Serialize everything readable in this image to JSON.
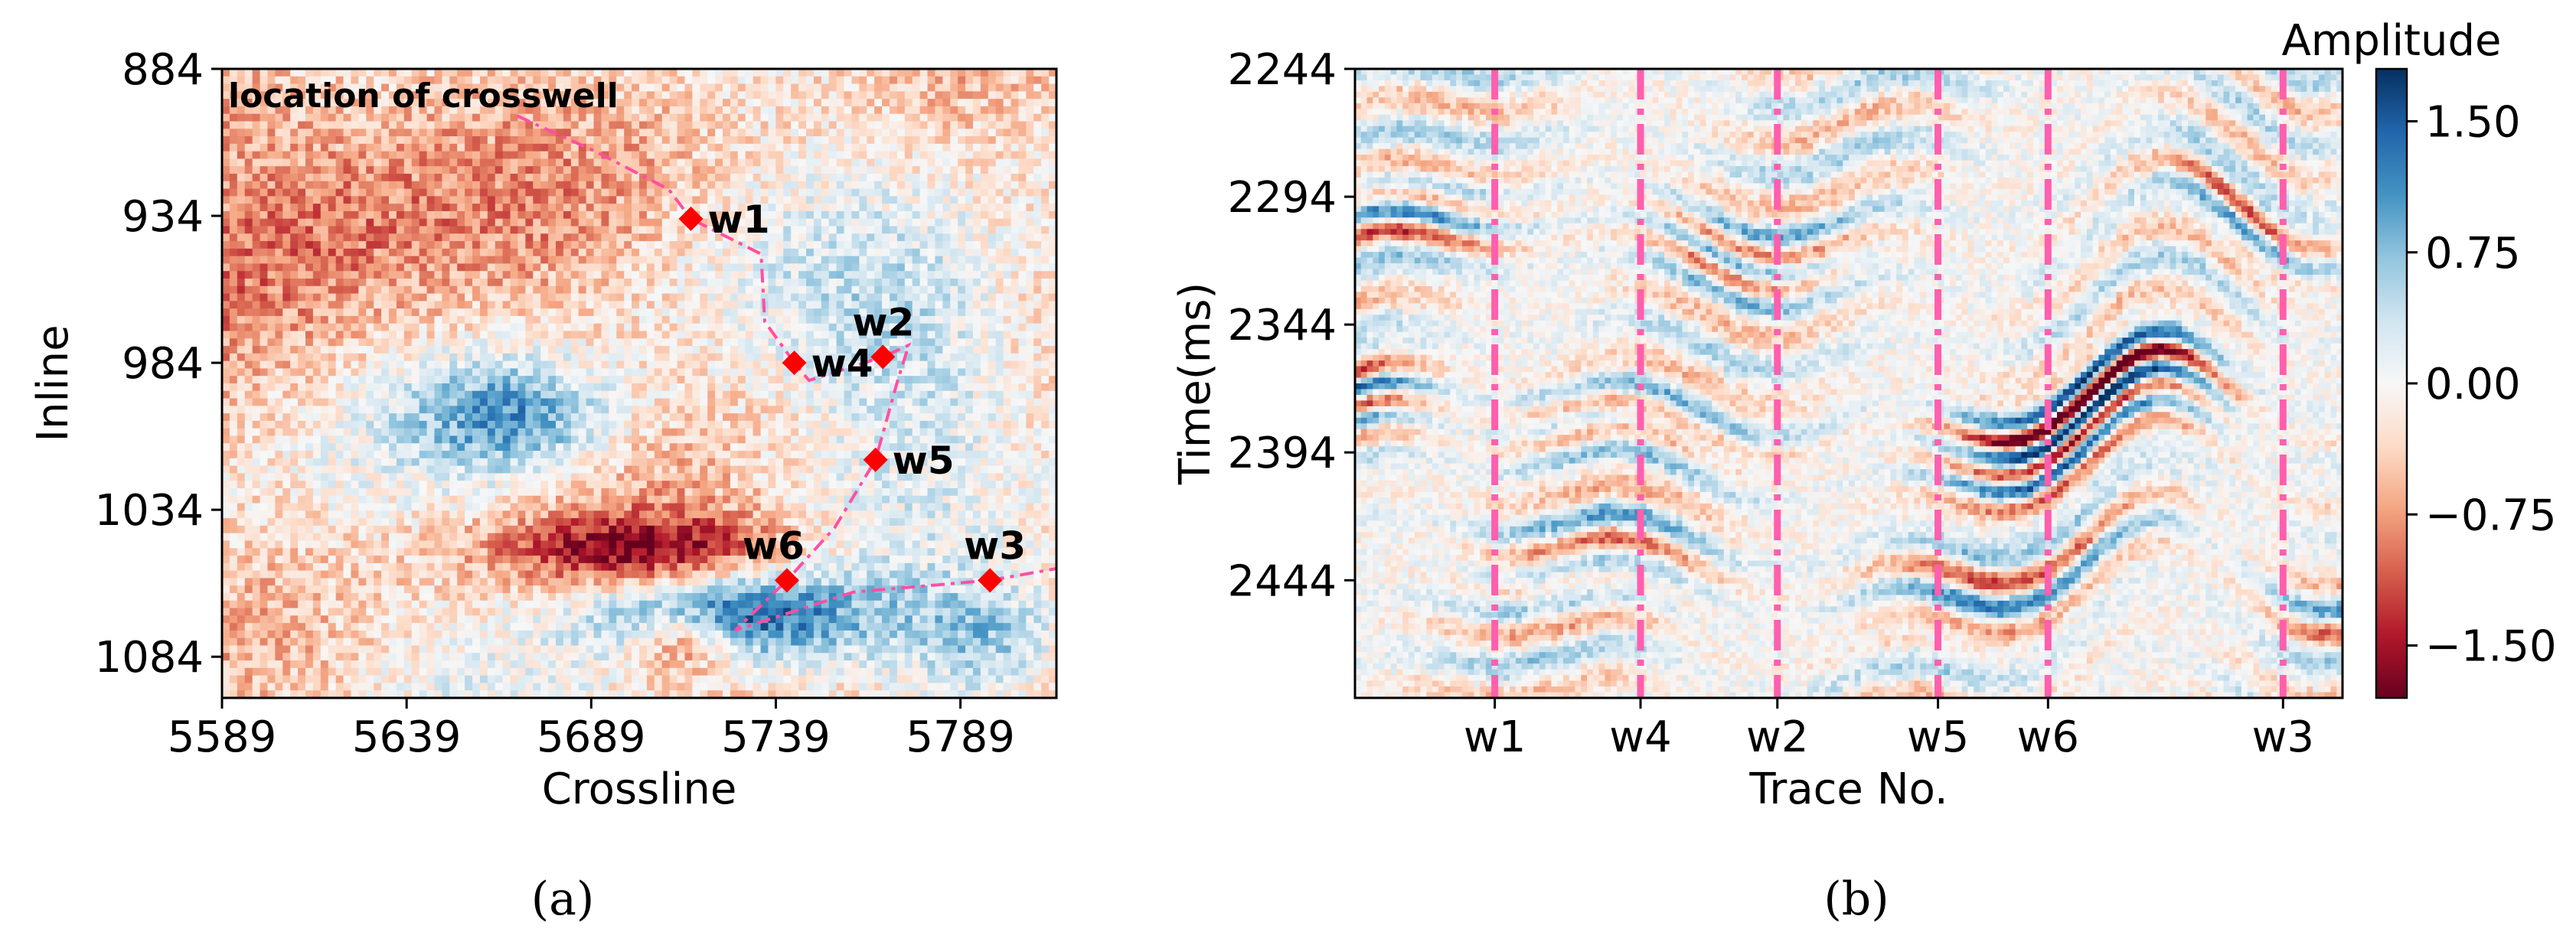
{
  "chart_data": [
    {
      "panel": "(a)",
      "type": "heatmap",
      "title": "location of crosswell",
      "xlabel": "Crossline",
      "ylabel": "Inline",
      "xlim": [
        5589,
        5815
      ],
      "ylim": [
        884,
        1098
      ],
      "xticks": [
        "5589",
        "5639",
        "5689",
        "5739",
        "5789"
      ],
      "yticks": [
        "884",
        "934",
        "984",
        "1034",
        "1084"
      ],
      "colorscale": [
        "#67001f",
        "#b2182b",
        "#d6604d",
        "#f4a582",
        "#fddbc7",
        "#f7f7f7",
        "#d1e5f0",
        "#92c5de",
        "#4393c3",
        "#2166ac",
        "#053061"
      ],
      "wells": [
        {
          "name": "w1",
          "crossline": 5716,
          "inline": 935
        },
        {
          "name": "w4",
          "crossline": 5744,
          "inline": 984
        },
        {
          "name": "w2",
          "crossline": 5768,
          "inline": 982
        },
        {
          "name": "w5",
          "crossline": 5766,
          "inline": 1017
        },
        {
          "name": "w6",
          "crossline": 5742,
          "inline": 1058
        },
        {
          "name": "w3",
          "crossline": 5797,
          "inline": 1058
        }
      ],
      "path": [
        [
          5669,
          900
        ],
        [
          5690,
          912
        ],
        [
          5710,
          925
        ],
        [
          5716,
          935
        ],
        [
          5735,
          947
        ],
        [
          5736,
          970
        ],
        [
          5744,
          984
        ],
        [
          5748,
          990
        ],
        [
          5768,
          982
        ],
        [
          5775,
          978
        ],
        [
          5772,
          990
        ],
        [
          5766,
          1017
        ],
        [
          5755,
          1040
        ],
        [
          5742,
          1058
        ],
        [
          5728,
          1075
        ],
        [
          5760,
          1062
        ],
        [
          5797,
          1058
        ],
        [
          5815,
          1054
        ]
      ],
      "marker_color": "#ff0000",
      "path_color": "#ff4fa3"
    },
    {
      "panel": "(b)",
      "type": "heatmap",
      "xlabel": "Trace No.",
      "ylabel": "Time(ms)",
      "ylim": [
        2244,
        2490
      ],
      "yticks": [
        "2244",
        "2294",
        "2344",
        "2394",
        "2444"
      ],
      "xticks": [
        "w1",
        "w4",
        "w2",
        "w5",
        "w6",
        "w3"
      ],
      "trace_range": [
        0,
        332
      ],
      "well_traces": [
        47,
        96,
        142,
        196,
        233,
        312
      ],
      "well_line_color": "#ff5fae",
      "colorbar": {
        "label": "Amplitude",
        "range": [
          -1.8,
          1.8
        ],
        "ticks": [
          "1.50",
          "0.75",
          "0.00",
          "−0.75",
          "−1.50"
        ],
        "tick_values": [
          1.5,
          0.75,
          0.0,
          -0.75,
          -1.5
        ]
      }
    }
  ],
  "panel_labels": [
    "(a)",
    "(b)"
  ]
}
